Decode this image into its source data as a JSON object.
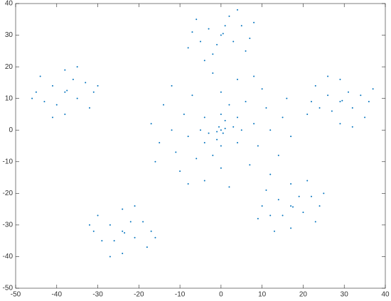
{
  "chart_data": {
    "type": "scatter",
    "color": "#0072bd",
    "xlim": [
      -50,
      40
    ],
    "ylim": [
      -50,
      40
    ],
    "xticks": [
      -50,
      -40,
      -30,
      -20,
      -10,
      0,
      10,
      20,
      30,
      40
    ],
    "yticks": [
      -50,
      -40,
      -30,
      -20,
      -10,
      0,
      10,
      20,
      30,
      40
    ],
    "x": [
      0,
      1,
      -1,
      0.5,
      -0.5,
      3,
      -3,
      1,
      -1,
      5,
      -5,
      0,
      0,
      4,
      -4,
      4,
      -4,
      8,
      -8,
      2,
      -2,
      9,
      -9,
      6,
      -6,
      12,
      -12,
      0,
      0,
      11,
      -11,
      7,
      -7,
      15,
      -15,
      4,
      -4,
      14,
      -14,
      10,
      -10,
      17,
      -17,
      2,
      -2,
      12,
      -12,
      16,
      -16,
      8,
      -8,
      0,
      0.5,
      -3,
      3,
      -5,
      5,
      2,
      -2,
      -7,
      7,
      -6,
      6,
      4,
      -4,
      8,
      -8,
      1,
      -1,
      -38,
      -37.5,
      -41,
      -35,
      -43,
      -33,
      -38,
      -38,
      -45,
      -31,
      -44,
      -32,
      -35,
      -41,
      -46,
      -30,
      -40,
      -36,
      29,
      29.5,
      26,
      32,
      24,
      34,
      29,
      29,
      22,
      36,
      23,
      35,
      26,
      32,
      37,
      21,
      31,
      27,
      17,
      17.5,
      14,
      20,
      12,
      22,
      17,
      17,
      10,
      24,
      11,
      23,
      13,
      21,
      25,
      9,
      19,
      15,
      -24,
      -23.5,
      -27,
      -21,
      -29,
      -19,
      -24,
      -24,
      -31,
      -17,
      -30,
      -18,
      -27,
      -21,
      -32,
      -16,
      -22,
      -26
    ],
    "values": [
      0,
      0.5,
      -0.5,
      -1,
      1,
      1,
      -1,
      3,
      -3,
      0,
      0,
      5,
      -5,
      4,
      4,
      -4,
      -4,
      2,
      -2,
      8,
      -8,
      -5,
      5,
      9,
      -9,
      0,
      0,
      12,
      -12,
      7,
      -7,
      -11,
      11,
      4,
      -4,
      16,
      -16,
      -8,
      8,
      13,
      -13,
      -2,
      2,
      -18,
      18,
      -14,
      14,
      10,
      -10,
      17,
      -17,
      30,
      30.5,
      32,
      28,
      28,
      33,
      36,
      24,
      31,
      29,
      35,
      25,
      38,
      22,
      34,
      26,
      33,
      27,
      12,
      12.5,
      14,
      10,
      9,
      15,
      19,
      5,
      12,
      12,
      17,
      7,
      20,
      4,
      10,
      14,
      8,
      16,
      9,
      9.3,
      11,
      7,
      7,
      11,
      16,
      2,
      9,
      9,
      14,
      4,
      17,
      1,
      13,
      5,
      12,
      6,
      -24,
      -24.3,
      -22,
      -26,
      -27,
      -21,
      -17,
      -31,
      -24,
      -24,
      -19,
      -29,
      -32,
      -16,
      -20,
      -28,
      -21,
      -27,
      -32,
      -32.5,
      -30,
      -34,
      -35,
      -29,
      -25,
      -39,
      -32,
      -32,
      -27,
      -37,
      -40,
      -24,
      -30,
      -34,
      -29,
      -35
    ]
  }
}
